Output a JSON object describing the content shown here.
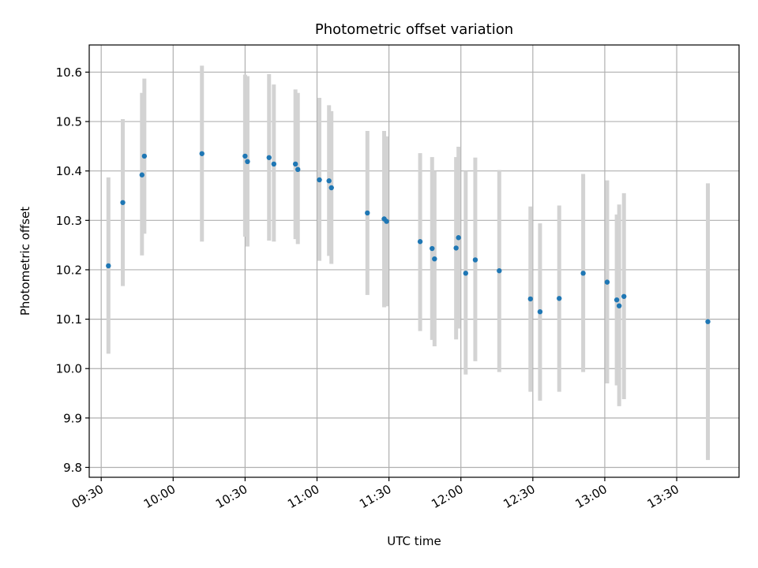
{
  "chart_data": {
    "type": "scatter",
    "title": "Photometric offset variation",
    "xlabel": "UTC time",
    "ylabel": "Photometric offset",
    "grid": true,
    "legend": "none",
    "x_ticks": [
      "09:30",
      "10:00",
      "10:30",
      "11:00",
      "11:30",
      "12:00",
      "12:30",
      "13:00",
      "13:30"
    ],
    "y_ticks": [
      "9.8",
      "9.9",
      "10.0",
      "10.1",
      "10.2",
      "10.3",
      "10.4",
      "10.5",
      "10.6"
    ],
    "xlim": [
      "09:25",
      "13:56"
    ],
    "ylim": [
      9.78,
      10.655
    ],
    "point_color": "#1f77b4",
    "errorbar_color": "#d3d3d3",
    "series": [
      {
        "points": [
          {
            "x": "09:33",
            "y": 10.208,
            "err_low": 10.03,
            "err_high": 10.387
          },
          {
            "x": "09:39",
            "y": 10.336,
            "err_low": 10.167,
            "err_high": 10.505
          },
          {
            "x": "09:47",
            "y": 10.392,
            "err_low": 10.229,
            "err_high": 10.558
          },
          {
            "x": "09:48",
            "y": 10.43,
            "err_low": 10.273,
            "err_high": 10.587
          },
          {
            "x": "10:12",
            "y": 10.435,
            "err_low": 10.257,
            "err_high": 10.613
          },
          {
            "x": "10:30",
            "y": 10.43,
            "err_low": 10.267,
            "err_high": 10.595
          },
          {
            "x": "10:31",
            "y": 10.419,
            "err_low": 10.247,
            "err_high": 10.592
          },
          {
            "x": "10:40",
            "y": 10.427,
            "err_low": 10.259,
            "err_high": 10.596
          },
          {
            "x": "10:42",
            "y": 10.414,
            "err_low": 10.257,
            "err_high": 10.575
          },
          {
            "x": "10:51",
            "y": 10.414,
            "err_low": 10.262,
            "err_high": 10.565
          },
          {
            "x": "10:52",
            "y": 10.403,
            "err_low": 10.252,
            "err_high": 10.558
          },
          {
            "x": "11:01",
            "y": 10.382,
            "err_low": 10.218,
            "err_high": 10.548
          },
          {
            "x": "11:05",
            "y": 10.38,
            "err_low": 10.228,
            "err_high": 10.533
          },
          {
            "x": "11:06",
            "y": 10.366,
            "err_low": 10.212,
            "err_high": 10.521
          },
          {
            "x": "11:21",
            "y": 10.315,
            "err_low": 10.149,
            "err_high": 10.481
          },
          {
            "x": "11:28",
            "y": 10.303,
            "err_low": 10.124,
            "err_high": 10.481
          },
          {
            "x": "11:29",
            "y": 10.298,
            "err_low": 10.126,
            "err_high": 10.47
          },
          {
            "x": "11:43",
            "y": 10.257,
            "err_low": 10.076,
            "err_high": 10.436
          },
          {
            "x": "11:48",
            "y": 10.243,
            "err_low": 10.058,
            "err_high": 10.428
          },
          {
            "x": "11:49",
            "y": 10.222,
            "err_low": 10.045,
            "err_high": 10.4
          },
          {
            "x": "11:58",
            "y": 10.244,
            "err_low": 10.059,
            "err_high": 10.428
          },
          {
            "x": "11:59",
            "y": 10.265,
            "err_low": 10.081,
            "err_high": 10.449
          },
          {
            "x": "12:02",
            "y": 10.193,
            "err_low": 9.988,
            "err_high": 10.4
          },
          {
            "x": "12:06",
            "y": 10.22,
            "err_low": 10.015,
            "err_high": 10.427
          },
          {
            "x": "12:16",
            "y": 10.198,
            "err_low": 9.993,
            "err_high": 10.402
          },
          {
            "x": "12:29",
            "y": 10.141,
            "err_low": 9.953,
            "err_high": 10.328
          },
          {
            "x": "12:33",
            "y": 10.115,
            "err_low": 9.935,
            "err_high": 10.294
          },
          {
            "x": "12:41",
            "y": 10.142,
            "err_low": 9.953,
            "err_high": 10.33
          },
          {
            "x": "12:51",
            "y": 10.193,
            "err_low": 9.993,
            "err_high": 10.394
          },
          {
            "x": "13:01",
            "y": 10.175,
            "err_low": 9.97,
            "err_high": 10.381
          },
          {
            "x": "13:05",
            "y": 10.139,
            "err_low": 9.966,
            "err_high": 10.312
          },
          {
            "x": "13:06",
            "y": 10.127,
            "err_low": 9.924,
            "err_high": 10.332
          },
          {
            "x": "13:08",
            "y": 10.146,
            "err_low": 9.938,
            "err_high": 10.355
          },
          {
            "x": "13:43",
            "y": 10.095,
            "err_low": 9.815,
            "err_high": 10.375
          }
        ]
      }
    ]
  }
}
